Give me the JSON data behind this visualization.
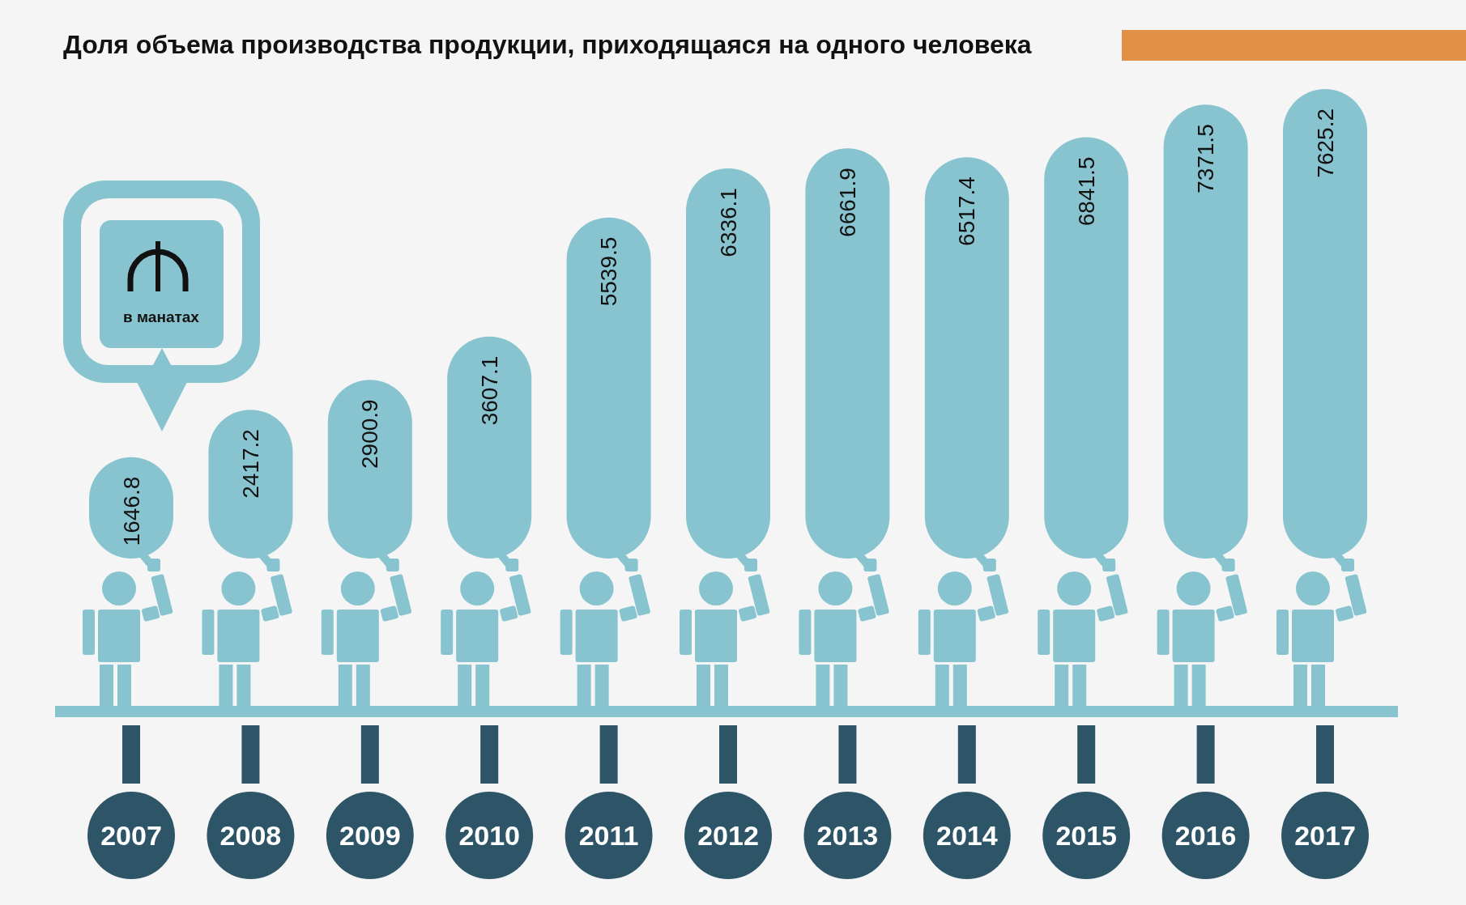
{
  "chart_data": {
    "type": "bar",
    "title": "Доля объема производства продукции, приходящаяся на одного человека",
    "categories": [
      "2007",
      "2008",
      "2009",
      "2010",
      "2011",
      "2012",
      "2013",
      "2014",
      "2015",
      "2016",
      "2017"
    ],
    "values": [
      1646.8,
      2417.2,
      2900.9,
      3607.1,
      5539.5,
      6336.1,
      6661.9,
      6517.4,
      6841.5,
      7371.5,
      7625.2
    ],
    "color": "#88c4cf",
    "data_labels": true,
    "annotations": [
      "в манатах"
    ]
  }
}
